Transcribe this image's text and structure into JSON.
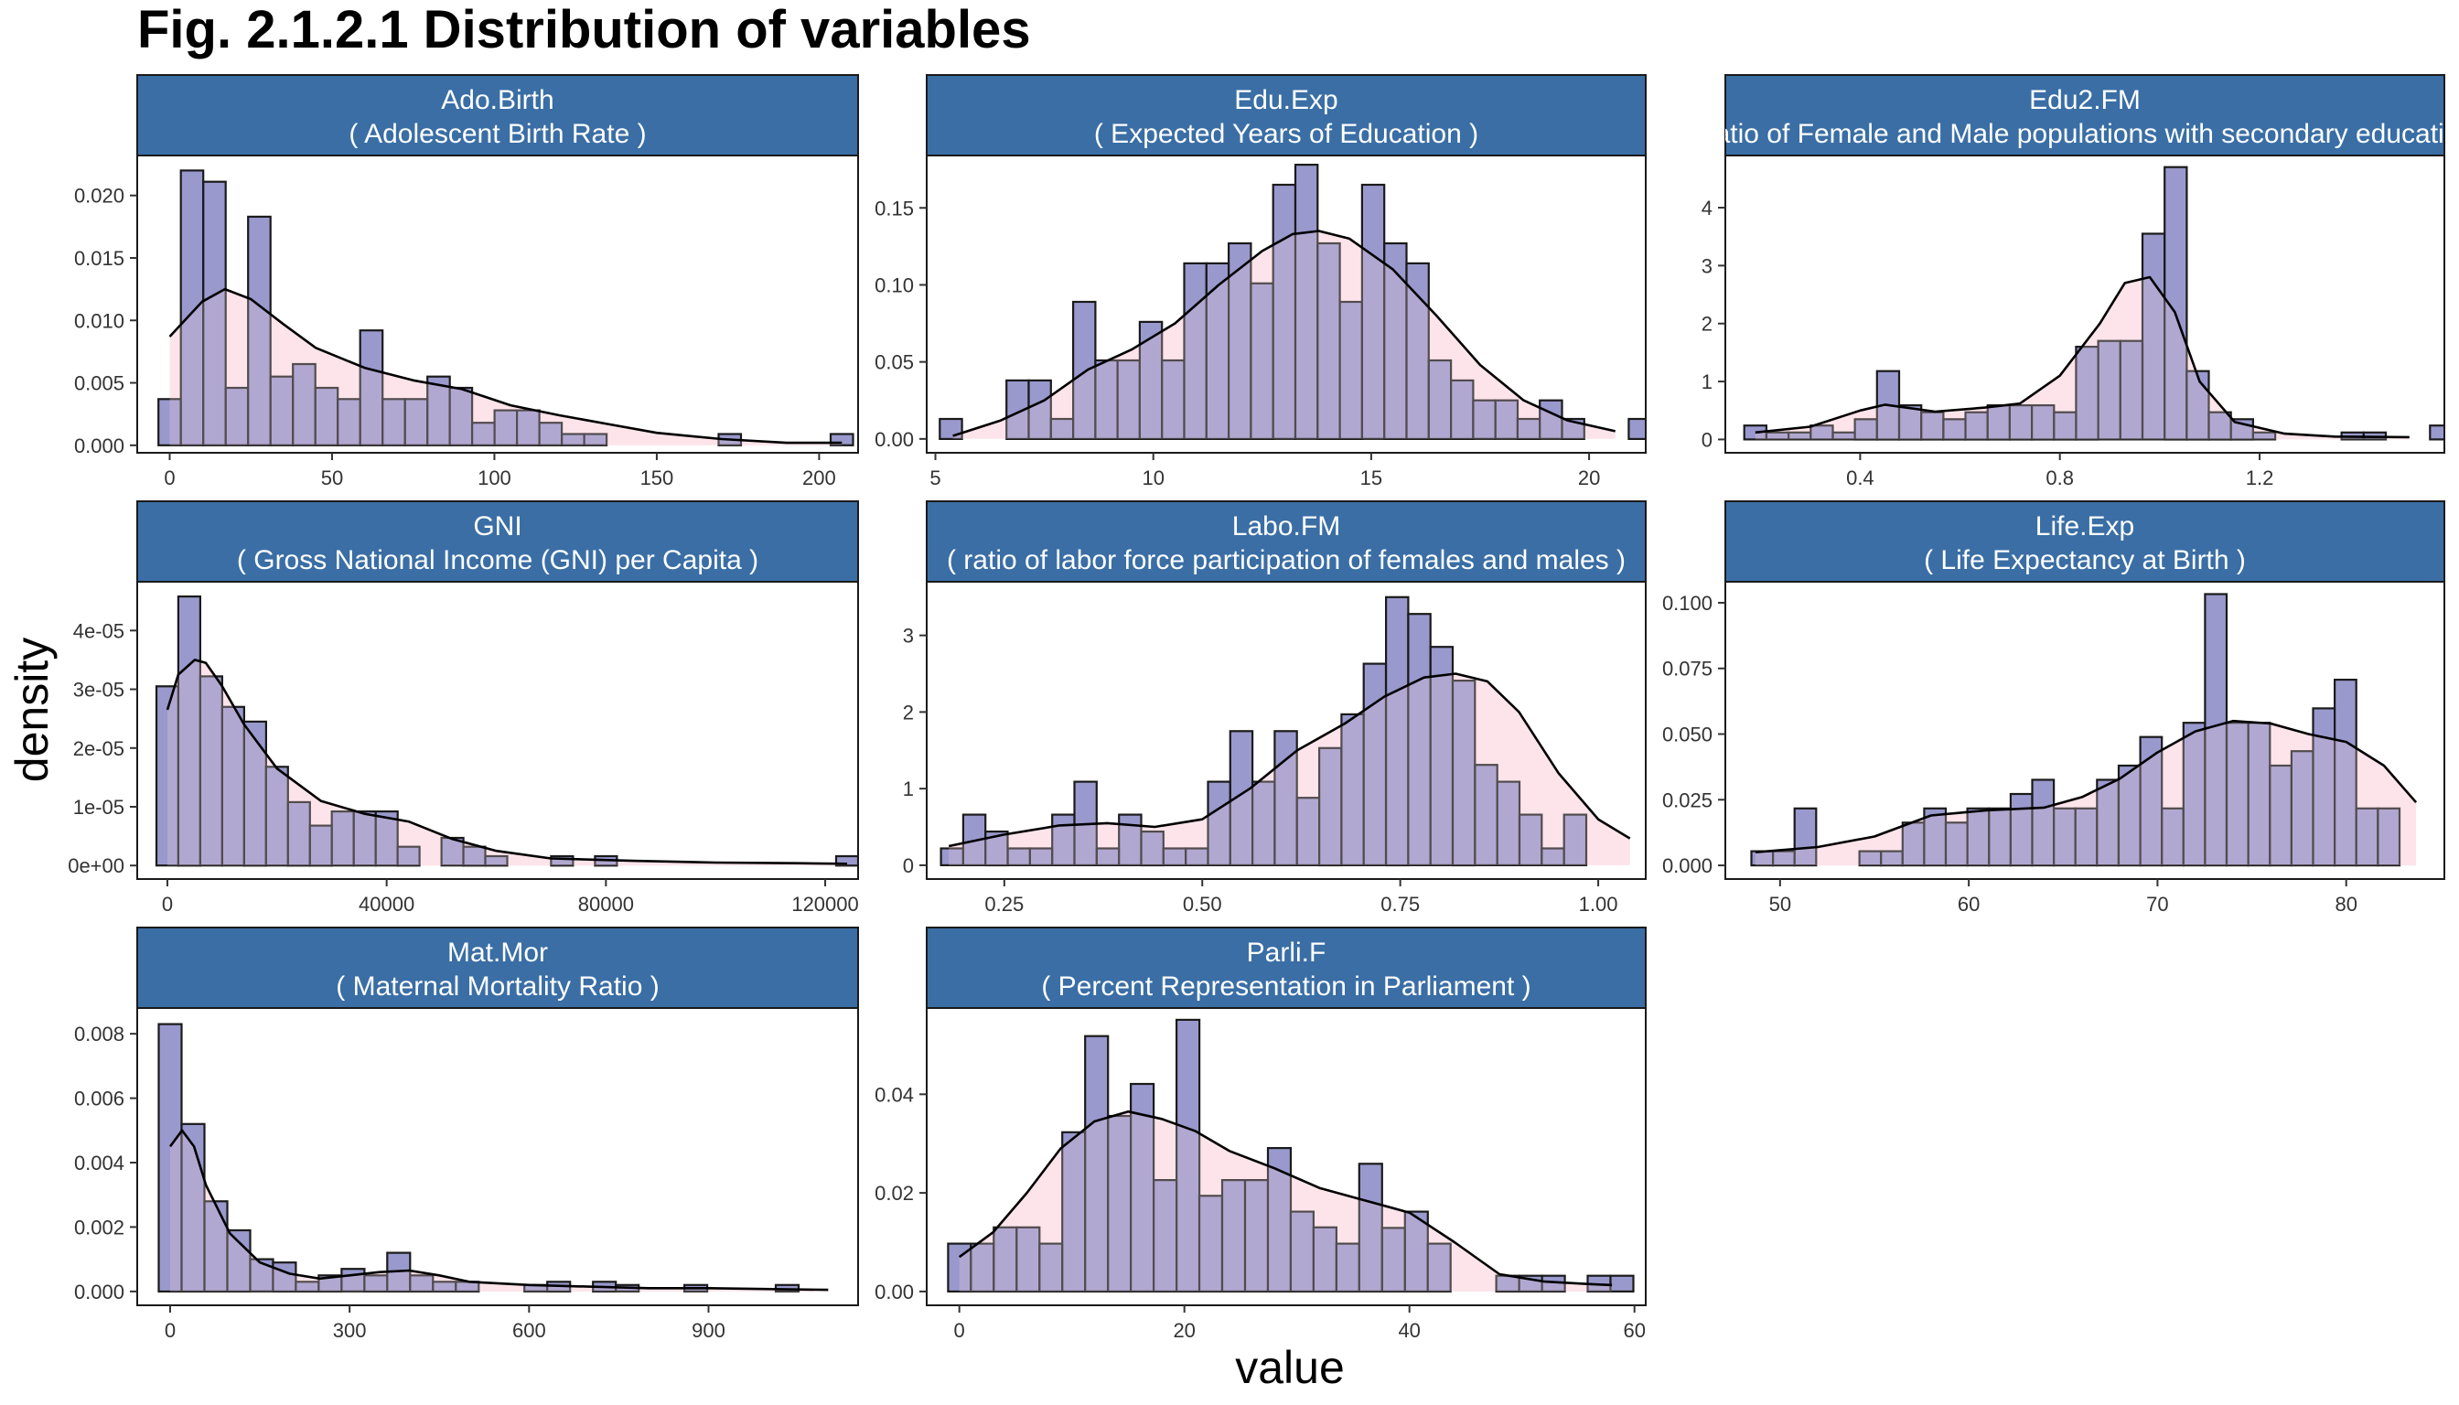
{
  "figure": {
    "title": "Fig. 2.1.2.1 Distribution of variables",
    "xlabel": "value",
    "ylabel": "density",
    "strip_color": "#3a6ea5",
    "bar_fill": "#7f80c0",
    "density_fill": "#fde4ea",
    "overlap_fill": "#a08bc0"
  },
  "chart_data": [
    {
      "type": "bar",
      "panel": "Ado.Birth",
      "strip_title": "Ado.Birth",
      "strip_subtitle": "( Adolescent Birth Rate )",
      "xlim": [
        -10,
        212
      ],
      "ylim": [
        -0.0006,
        0.0232
      ],
      "x_ticks": [
        0,
        50,
        100,
        150,
        200
      ],
      "x_tick_labels": [
        "0",
        "50",
        "100",
        "150",
        "200"
      ],
      "y_ticks": [
        0,
        0.005,
        0.01,
        0.015,
        0.02
      ],
      "y_tick_labels": [
        "0.000",
        "0.005",
        "0.010",
        "0.015",
        "0.020"
      ],
      "bin_start": -3.45,
      "bin_width": 6.9,
      "values": [
        0.0037,
        0.022,
        0.0211,
        0.0046,
        0.0183,
        0.0055,
        0.0065,
        0.0046,
        0.0037,
        0.0092,
        0.0037,
        0.0037,
        0.0055,
        0.0046,
        0.0018,
        0.0028,
        0.0028,
        0.0018,
        0.0009,
        0.0009,
        0.0,
        0.0,
        0.0,
        0.0,
        0.0,
        0.0009,
        0.0,
        0.0,
        0.0,
        0.0,
        0.0009
      ],
      "density_x": [
        0,
        10,
        17,
        25,
        35,
        45,
        60,
        75,
        90,
        105,
        120,
        135,
        150,
        170,
        190,
        207
      ],
      "density_y": [
        0.0087,
        0.0115,
        0.0125,
        0.0117,
        0.0097,
        0.0078,
        0.0062,
        0.0052,
        0.0045,
        0.0032,
        0.0024,
        0.0017,
        0.001,
        0.0005,
        0.0002,
        0.0002
      ]
    },
    {
      "type": "bar",
      "panel": "Edu.Exp",
      "strip_title": "Edu.Exp",
      "strip_subtitle": "( Expected Years of Education )",
      "xlim": [
        4.8,
        21.3
      ],
      "ylim": [
        -0.009,
        0.184
      ],
      "x_ticks": [
        5,
        10,
        15,
        20
      ],
      "x_tick_labels": [
        "5",
        "10",
        "15",
        "20"
      ],
      "y_ticks": [
        0,
        0.05,
        0.1,
        0.15
      ],
      "y_tick_labels": [
        "0.00",
        "0.05",
        "0.10",
        "0.15"
      ],
      "bin_start": 5.1,
      "bin_width": 0.51,
      "values": [
        0.013,
        0,
        0,
        0.038,
        0.038,
        0.013,
        0.089,
        0.051,
        0.051,
        0.076,
        0.051,
        0.114,
        0.114,
        0.127,
        0.101,
        0.165,
        0.178,
        0.127,
        0.089,
        0.165,
        0.127,
        0.114,
        0.051,
        0.038,
        0.025,
        0.025,
        0.013,
        0.025,
        0.013,
        0,
        0,
        0.013
      ],
      "density_x": [
        5.4,
        6.5,
        7.5,
        8.5,
        9.5,
        10.5,
        11.5,
        12.5,
        13.2,
        13.8,
        14.5,
        15.5,
        16.5,
        17.5,
        18.5,
        19.5,
        20.6
      ],
      "density_y": [
        0.002,
        0.012,
        0.025,
        0.045,
        0.058,
        0.075,
        0.1,
        0.122,
        0.133,
        0.135,
        0.13,
        0.11,
        0.08,
        0.048,
        0.025,
        0.012,
        0.005
      ]
    },
    {
      "type": "bar",
      "panel": "Edu2.FM",
      "strip_title": "Edu2.FM",
      "strip_subtitle": "( Ratio of Female and Male populations with secondary education )",
      "xlim": [
        0.13,
        1.57
      ],
      "ylim": [
        -0.23,
        4.9
      ],
      "x_ticks": [
        0.4,
        0.8,
        1.2
      ],
      "x_tick_labels": [
        "0.4",
        "0.8",
        "1.2"
      ],
      "y_ticks": [
        0,
        1,
        2,
        3,
        4
      ],
      "y_tick_labels": [
        "0",
        "1",
        "2",
        "3",
        "4"
      ],
      "bin_start": 0.168,
      "bin_width": 0.0443,
      "values": [
        0.24,
        0.12,
        0.12,
        0.24,
        0.12,
        0.35,
        1.18,
        0.59,
        0.47,
        0.35,
        0.47,
        0.59,
        0.59,
        0.59,
        0.47,
        1.6,
        1.7,
        1.7,
        3.55,
        4.7,
        1.18,
        0.47,
        0.35,
        0.12,
        0,
        0,
        0,
        0.12,
        0.12,
        0,
        0,
        0.24
      ],
      "density_x": [
        0.19,
        0.3,
        0.4,
        0.45,
        0.55,
        0.65,
        0.72,
        0.8,
        0.88,
        0.93,
        0.98,
        1.03,
        1.08,
        1.15,
        1.25,
        1.35,
        1.5
      ],
      "density_y": [
        0.12,
        0.22,
        0.5,
        0.6,
        0.48,
        0.55,
        0.62,
        1.1,
        2.0,
        2.7,
        2.8,
        2.2,
        1.0,
        0.3,
        0.1,
        0.05,
        0.04
      ]
    },
    {
      "type": "bar",
      "panel": "GNI",
      "strip_title": "GNI",
      "strip_subtitle": "( Gross National Income (GNI) per Capita )",
      "xlim": [
        -5500,
        126000
      ],
      "ylim": [
        -2.3e-06,
        4.83e-05
      ],
      "x_ticks": [
        0,
        40000,
        80000,
        120000
      ],
      "x_tick_labels": [
        "0",
        "40000",
        "80000",
        "120000"
      ],
      "y_ticks": [
        0,
        1e-05,
        2e-05,
        3e-05,
        4e-05
      ],
      "y_tick_labels": [
        "0e+00",
        "1e-05",
        "2e-05",
        "3e-05",
        "4e-05"
      ],
      "bin_start": -2000,
      "bin_width": 4000,
      "values": [
        3.05e-05,
        4.58e-05,
        3.22e-05,
        2.7e-05,
        2.45e-05,
        1.68e-05,
        1.08e-05,
        6.8e-06,
        9.2e-06,
        9.2e-06,
        9.2e-06,
        3.2e-06,
        0,
        4.7e-06,
        3.2e-06,
        1.6e-06,
        0,
        0,
        1.6e-06,
        0,
        1.6e-06,
        0,
        0,
        0,
        0,
        0,
        0,
        0,
        0,
        0,
        0,
        1.6e-06
      ],
      "density_x": [
        0,
        2000,
        5000,
        7000,
        10000,
        14000,
        20000,
        28000,
        36000,
        44000,
        52000,
        60000,
        70000,
        85000,
        100000,
        115000,
        124000
      ],
      "density_y": [
        2.65e-05,
        3.25e-05,
        3.5e-05,
        3.45e-05,
        3.05e-05,
        2.4e-05,
        1.65e-05,
        1.1e-05,
        8.8e-06,
        7.5e-06,
        4.5e-06,
        2.5e-06,
        1.2e-06,
        8e-07,
        5e-07,
        4e-07,
        3e-07
      ]
    },
    {
      "type": "bar",
      "panel": "Labo.FM",
      "strip_title": "Labo.FM",
      "strip_subtitle": "( ratio of labor force participation of females and males )",
      "xlim": [
        0.152,
        1.06
      ],
      "ylim": [
        -0.18,
        3.7
      ],
      "x_ticks": [
        0.25,
        0.5,
        0.75,
        1.0
      ],
      "x_tick_labels": [
        "0.25",
        "0.50",
        "0.75",
        "1.00"
      ],
      "y_ticks": [
        0,
        1,
        2,
        3
      ],
      "y_tick_labels": [
        "0",
        "1",
        "2",
        "3"
      ],
      "bin_start": 0.17,
      "bin_width": 0.0281,
      "values": [
        0.22,
        0.66,
        0.44,
        0.22,
        0.22,
        0.66,
        1.09,
        0.22,
        0.66,
        0.44,
        0.22,
        0.22,
        1.09,
        1.75,
        1.09,
        1.75,
        0.88,
        1.53,
        1.97,
        2.63,
        3.5,
        3.28,
        2.85,
        2.41,
        1.31,
        1.09,
        0.66,
        0.22,
        0.66
      ],
      "density_x": [
        0.18,
        0.25,
        0.32,
        0.38,
        0.44,
        0.5,
        0.56,
        0.62,
        0.68,
        0.73,
        0.78,
        0.82,
        0.86,
        0.9,
        0.95,
        1.0,
        1.04
      ],
      "density_y": [
        0.25,
        0.4,
        0.52,
        0.55,
        0.5,
        0.6,
        1.0,
        1.5,
        1.85,
        2.2,
        2.45,
        2.5,
        2.4,
        2.0,
        1.2,
        0.6,
        0.35
      ]
    },
    {
      "type": "bar",
      "panel": "Life.Exp",
      "strip_title": "Life.Exp",
      "strip_subtitle": "( Life Expectancy at Birth )",
      "xlim": [
        47.1,
        85.2
      ],
      "ylim": [
        -0.0052,
        0.108
      ],
      "x_ticks": [
        50,
        60,
        70,
        80
      ],
      "x_tick_labels": [
        "50",
        "60",
        "70",
        "80"
      ],
      "y_ticks": [
        0,
        0.025,
        0.05,
        0.075,
        0.1
      ],
      "y_tick_labels": [
        "0.000",
        "0.025",
        "0.050",
        "0.075",
        "0.100"
      ],
      "bin_start": 48.48,
      "bin_width": 1.1448,
      "values": [
        0.0054,
        0.0054,
        0.0217,
        0,
        0,
        0.0054,
        0.0054,
        0.0163,
        0.0217,
        0.0163,
        0.0217,
        0.0217,
        0.0272,
        0.0326,
        0.0217,
        0.0217,
        0.0326,
        0.038,
        0.0489,
        0.0217,
        0.0543,
        0.1033,
        0.0543,
        0.0543,
        0.038,
        0.0435,
        0.0598,
        0.0707,
        0.0217,
        0.0217
      ],
      "density_x": [
        48.7,
        52,
        55,
        58,
        61,
        64,
        66,
        68,
        70,
        72,
        74,
        76,
        78,
        80,
        82,
        83.7
      ],
      "density_y": [
        0.005,
        0.007,
        0.011,
        0.019,
        0.021,
        0.022,
        0.026,
        0.033,
        0.043,
        0.051,
        0.055,
        0.054,
        0.05,
        0.047,
        0.038,
        0.024
      ]
    },
    {
      "type": "bar",
      "panel": "Mat.Mor",
      "strip_title": "Mat.Mor",
      "strip_subtitle": "( Maternal Mortality Ratio )",
      "xlim": [
        -55,
        1150
      ],
      "ylim": [
        -0.00043,
        0.0088
      ],
      "x_ticks": [
        0,
        300,
        600,
        900
      ],
      "x_tick_labels": [
        "0",
        "300",
        "600",
        "900"
      ],
      "y_ticks": [
        0,
        0.002,
        0.004,
        0.006,
        0.008
      ],
      "y_tick_labels": [
        "0.000",
        "0.002",
        "0.004",
        "0.006",
        "0.008"
      ],
      "bin_start": -19,
      "bin_width": 38.2,
      "values": [
        0.0083,
        0.0052,
        0.0028,
        0.0019,
        0.001,
        0.0009,
        0.0003,
        0.0005,
        0.0007,
        0.0005,
        0.0012,
        0.0005,
        0.0003,
        0.0003,
        0,
        0,
        0.0002,
        0.0003,
        0,
        0.0003,
        0.0002,
        0,
        0,
        0.0002,
        0,
        0,
        0,
        0.0002,
        0,
        0
      ],
      "density_x": [
        0,
        20,
        40,
        60,
        100,
        150,
        200,
        250,
        300,
        350,
        400,
        450,
        500,
        600,
        700,
        800,
        900,
        1100
      ],
      "density_y": [
        0.0045,
        0.005,
        0.0045,
        0.0033,
        0.0018,
        0.0009,
        0.00055,
        0.0004,
        0.0005,
        0.0006,
        0.00065,
        0.0005,
        0.0003,
        0.0002,
        0.00015,
        0.0001,
        0.0001,
        5e-05
      ]
    },
    {
      "type": "bar",
      "panel": "Parli.F",
      "strip_title": "Parli.F",
      "strip_subtitle": "( Percent Representation in Parliament )",
      "xlim": [
        -2.9,
        61.0
      ],
      "ylim": [
        -0.0028,
        0.0575
      ],
      "x_ticks": [
        0,
        20,
        40,
        60
      ],
      "x_tick_labels": [
        "0",
        "20",
        "40",
        "60"
      ],
      "y_ticks": [
        0,
        0.02,
        0.04
      ],
      "y_tick_labels": [
        "0.00",
        "0.02",
        "0.04"
      ],
      "bin_start": -1.0,
      "bin_width": 2.03,
      "values": [
        0.0097,
        0.0097,
        0.013,
        0.013,
        0.0097,
        0.0323,
        0.0518,
        0.0356,
        0.0421,
        0.0226,
        0.0551,
        0.0194,
        0.0226,
        0.0226,
        0.0291,
        0.0162,
        0.013,
        0.0097,
        0.0259,
        0.0129,
        0.0162,
        0.0097,
        0,
        0,
        0.0032,
        0.0032,
        0.0032,
        0,
        0.0032,
        0.0032
      ],
      "density_x": [
        0,
        3,
        6,
        9,
        12,
        15,
        18,
        21,
        24,
        28,
        32,
        36,
        40,
        44,
        48,
        52,
        56,
        58
      ],
      "density_y": [
        0.007,
        0.012,
        0.02,
        0.029,
        0.0345,
        0.0365,
        0.035,
        0.0325,
        0.0285,
        0.025,
        0.021,
        0.0185,
        0.016,
        0.01,
        0.0035,
        0.002,
        0.0015,
        0.0013
      ]
    }
  ]
}
